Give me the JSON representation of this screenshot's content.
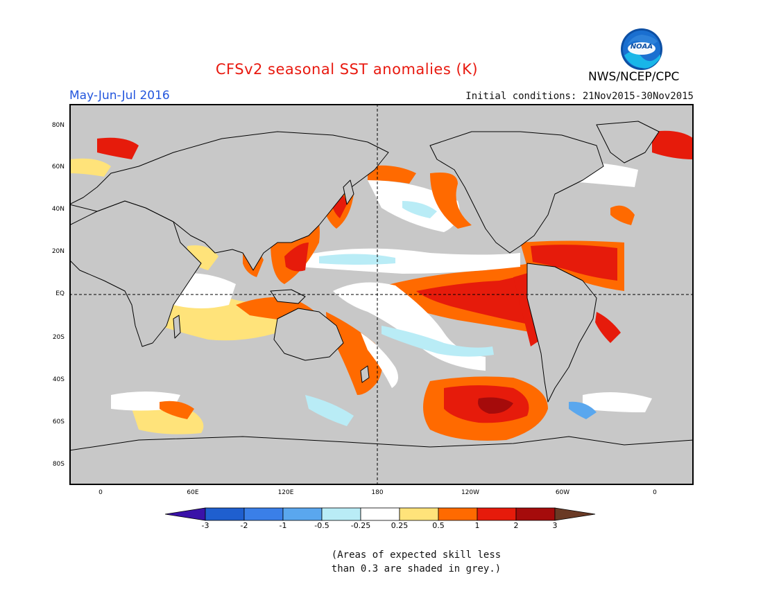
{
  "header": {
    "title": "CFSv2 seasonal SST anomalies (K)",
    "period": "May-Jun-Jul 2016",
    "initial_conditions": "Initial conditions: 21Nov2015-30Nov2015",
    "agency": "NWS/NCEP/CPC",
    "logo_text": "NOAA"
  },
  "map": {
    "lat_labels": [
      "80N",
      "60N",
      "40N",
      "20N",
      "EQ",
      "20S",
      "40S",
      "60S",
      "80S"
    ],
    "lon_labels": [
      "0",
      "60E",
      "120E",
      "180",
      "120W",
      "60W",
      "0"
    ],
    "land_color": "#c8c8c8"
  },
  "colorbar": {
    "labels": [
      "-3",
      "-2",
      "-1",
      "-0.5",
      "-0.25",
      "0.25",
      "0.5",
      "1",
      "2",
      "3"
    ],
    "colors": [
      "#3a12a8",
      "#1f5fcf",
      "#3a7fe8",
      "#5aa7ee",
      "#b9ecf6",
      "#ffffff",
      "#ffe37a",
      "#ff6a00",
      "#e61b0b",
      "#a50b0b",
      "#6a3a25"
    ]
  },
  "note": {
    "line1": "(Areas of expected skill less",
    "line2": "than 0.3 are shaded in grey.)"
  }
}
